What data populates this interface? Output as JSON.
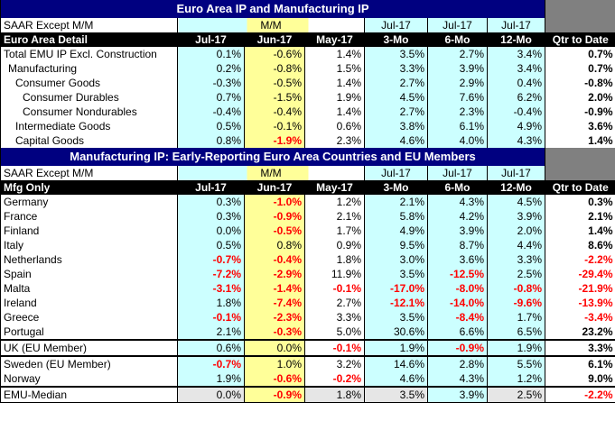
{
  "table1": {
    "title": "Euro Area IP and Manufacturing IP",
    "units_label": "SAAR Except M/M",
    "mm_label": "M/M",
    "period_tops": [
      "Jul-17",
      "Jul-17",
      "Jul-17"
    ],
    "detail_label": "Euro Area Detail",
    "col_headers": [
      "Jul-17",
      "Jun-17",
      "May-17",
      "3-Mo",
      "6-Mo",
      "12-Mo",
      "Qtr to Date"
    ],
    "rows": [
      {
        "label": "Total EMU IP Excl. Construction",
        "vals": [
          "0.1%",
          "-0.6%",
          "1.4%",
          "3.5%",
          "2.7%",
          "3.4%",
          "0.7%"
        ],
        "neg": [
          false,
          false,
          false,
          false,
          false,
          false,
          false
        ]
      },
      {
        "label": "Manufacturing",
        "vals": [
          "0.2%",
          "-0.8%",
          "1.5%",
          "3.3%",
          "3.9%",
          "3.4%",
          "0.7%"
        ],
        "neg": [
          false,
          false,
          false,
          false,
          false,
          false,
          false
        ]
      },
      {
        "label": "Consumer Goods",
        "vals": [
          "-0.3%",
          "-0.5%",
          "1.4%",
          "2.7%",
          "2.9%",
          "0.4%",
          "-0.8%"
        ],
        "neg": [
          false,
          false,
          false,
          false,
          false,
          false,
          false
        ]
      },
      {
        "label": "Consumer Durables",
        "vals": [
          "0.7%",
          "-1.5%",
          "1.9%",
          "4.5%",
          "7.6%",
          "6.2%",
          "2.0%"
        ],
        "neg": [
          false,
          false,
          false,
          false,
          false,
          false,
          false
        ]
      },
      {
        "label": "Consumer Nondurables",
        "vals": [
          "-0.4%",
          "-0.4%",
          "1.4%",
          "2.7%",
          "2.3%",
          "-0.4%",
          "-0.9%"
        ],
        "neg": [
          false,
          false,
          false,
          false,
          false,
          false,
          false
        ]
      },
      {
        "label": "Intermediate Goods",
        "vals": [
          "0.5%",
          "-0.1%",
          "0.6%",
          "3.8%",
          "6.1%",
          "4.9%",
          "3.6%"
        ],
        "neg": [
          false,
          false,
          false,
          false,
          false,
          false,
          false
        ]
      },
      {
        "label": "Capital Goods",
        "vals": [
          "0.8%",
          "-1.9%",
          "2.3%",
          "4.6%",
          "4.0%",
          "4.3%",
          "1.4%"
        ],
        "neg": [
          false,
          true,
          false,
          false,
          false,
          false,
          false
        ]
      }
    ]
  },
  "table2": {
    "title": "Manufacturing IP: Early-Reporting Euro Area Countries and EU Members",
    "units_label": "SAAR Except M/M",
    "mm_label": "M/M",
    "period_tops": [
      "Jul-17",
      "Jul-17",
      "Jul-17"
    ],
    "detail_label": "Mfg Only",
    "col_headers": [
      "Jul-17",
      "Jun-17",
      "May-17",
      "3-Mo",
      "6-Mo",
      "12-Mo",
      "Qtr to Date"
    ],
    "rows": [
      {
        "label": "Germany",
        "vals": [
          "0.3%",
          "-1.0%",
          "1.2%",
          "2.1%",
          "4.3%",
          "4.5%",
          "0.3%"
        ],
        "neg": [
          false,
          true,
          false,
          false,
          false,
          false,
          false
        ]
      },
      {
        "label": "France",
        "vals": [
          "0.3%",
          "-0.9%",
          "2.1%",
          "5.8%",
          "4.2%",
          "3.9%",
          "2.1%"
        ],
        "neg": [
          false,
          true,
          false,
          false,
          false,
          false,
          false
        ]
      },
      {
        "label": "Finland",
        "vals": [
          "0.0%",
          "-0.5%",
          "1.7%",
          "4.9%",
          "3.9%",
          "2.0%",
          "1.4%"
        ],
        "neg": [
          false,
          true,
          false,
          false,
          false,
          false,
          false
        ]
      },
      {
        "label": "Italy",
        "vals": [
          "0.5%",
          "0.8%",
          "0.9%",
          "9.5%",
          "8.7%",
          "4.4%",
          "8.6%"
        ],
        "neg": [
          false,
          false,
          false,
          false,
          false,
          false,
          false
        ]
      },
      {
        "label": "Netherlands",
        "vals": [
          "-0.7%",
          "-0.4%",
          "1.8%",
          "3.0%",
          "3.6%",
          "3.3%",
          "-2.2%"
        ],
        "neg": [
          true,
          true,
          false,
          false,
          false,
          false,
          true
        ]
      },
      {
        "label": "Spain",
        "vals": [
          "-7.2%",
          "-2.9%",
          "11.9%",
          "3.5%",
          "-12.5%",
          "2.5%",
          "-29.4%"
        ],
        "neg": [
          true,
          true,
          false,
          false,
          true,
          false,
          true
        ]
      },
      {
        "label": "Malta",
        "vals": [
          "-3.1%",
          "-1.4%",
          "-0.1%",
          "-17.0%",
          "-8.0%",
          "-0.8%",
          "-21.9%"
        ],
        "neg": [
          true,
          true,
          true,
          true,
          true,
          true,
          true
        ]
      },
      {
        "label": "Ireland",
        "vals": [
          "1.8%",
          "-7.4%",
          "2.7%",
          "-12.1%",
          "-14.0%",
          "-9.6%",
          "-13.9%"
        ],
        "neg": [
          false,
          true,
          false,
          true,
          true,
          true,
          true
        ]
      },
      {
        "label": "Greece",
        "vals": [
          "-0.1%",
          "-2.3%",
          "3.3%",
          "3.5%",
          "-8.4%",
          "1.7%",
          "-3.4%"
        ],
        "neg": [
          true,
          true,
          false,
          false,
          true,
          false,
          true
        ]
      },
      {
        "label": "Portugal",
        "vals": [
          "2.1%",
          "-0.3%",
          "5.0%",
          "30.6%",
          "6.6%",
          "6.5%",
          "23.2%"
        ],
        "neg": [
          false,
          true,
          false,
          false,
          false,
          false,
          false
        ]
      }
    ],
    "uk": {
      "label": "UK (EU Member)",
      "vals": [
        "0.6%",
        "0.0%",
        "-0.1%",
        "1.9%",
        "-0.9%",
        "1.9%",
        "3.3%"
      ],
      "neg": [
        false,
        false,
        true,
        false,
        true,
        false,
        false
      ]
    },
    "eu_rows": [
      {
        "label": "Sweden (EU Member)",
        "vals": [
          "-0.7%",
          "1.0%",
          "3.2%",
          "14.6%",
          "2.8%",
          "5.5%",
          "6.1%"
        ],
        "neg": [
          true,
          false,
          false,
          false,
          false,
          false,
          false
        ]
      },
      {
        "label": "Norway",
        "vals": [
          "1.9%",
          "-0.6%",
          "-0.2%",
          "4.6%",
          "4.3%",
          "1.2%",
          "9.0%"
        ],
        "neg": [
          false,
          true,
          true,
          false,
          false,
          false,
          false
        ]
      }
    ],
    "median": {
      "label": "EMU-Median",
      "vals": [
        "0.0%",
        "-0.9%",
        "1.8%",
        "3.5%",
        "3.9%",
        "2.5%",
        "-2.2%"
      ],
      "neg": [
        false,
        true,
        false,
        false,
        false,
        false,
        true
      ]
    }
  }
}
